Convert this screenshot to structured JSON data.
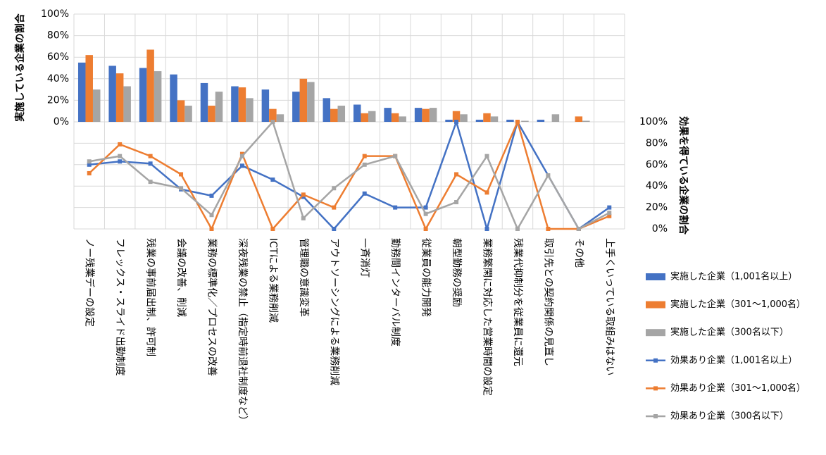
{
  "chart_data": {
    "type": "bar+line",
    "categories": [
      "ノー残業デーの設定",
      "フレックス・スライド出勤制度",
      "残業の事前届出制、許可制",
      "会議の改善、削減",
      "業務の標準化／プロセスの改善",
      "深夜残業の禁止（指定時前退社制度など）",
      "ICTによる業務削減",
      "管理職の意識変革",
      "アウトソーシングによる業務削減",
      "一斉消灯",
      "勤務間インターバル制度",
      "従業員の能力開発",
      "朝型勤務の奨励",
      "業務繁閑に対応した営業時間の設定",
      "残業代抑制分を従業員に還元",
      "取引先との契約関係の見直し",
      "その他",
      "上手くいっている取組みはない"
    ],
    "bar_axis": {
      "title": "実施している企業の割合",
      "ticks": [
        "0%",
        "20%",
        "40%",
        "60%",
        "80%",
        "100%"
      ],
      "ylim": [
        0,
        100
      ]
    },
    "line_axis": {
      "title": "効果を得ている企業の割合",
      "ticks": [
        "0%",
        "20%",
        "40%",
        "60%",
        "80%",
        "100%"
      ],
      "ylim": [
        0,
        100
      ]
    },
    "bar_series": [
      {
        "name": "実施した企業（1,001名以上）",
        "color": "#4472c4",
        "values": [
          55,
          52,
          50,
          44,
          36,
          33,
          30,
          28,
          22,
          16,
          13,
          13,
          2,
          2,
          2,
          2,
          0,
          0
        ]
      },
      {
        "name": "実施した企業（301～1,000名）",
        "color": "#ed7d31",
        "values": [
          62,
          45,
          67,
          20,
          15,
          32,
          12,
          40,
          12,
          8,
          8,
          12,
          10,
          8,
          0,
          0,
          5,
          0
        ]
      },
      {
        "name": "実施した企業（300名以下）",
        "color": "#a5a5a5",
        "values": [
          30,
          33,
          47,
          15,
          28,
          22,
          7,
          37,
          15,
          10,
          5,
          13,
          7,
          5,
          1,
          7,
          1,
          0
        ]
      }
    ],
    "line_series": [
      {
        "name": "効果あり企業（1,001名以上）",
        "color": "#4472c4",
        "values": [
          60,
          63,
          61,
          37,
          31,
          59,
          46,
          30,
          0,
          33,
          20,
          20,
          100,
          0,
          100,
          null,
          0,
          20
        ]
      },
      {
        "name": "効果あり企業（301～1,000名）",
        "color": "#ed7d31",
        "values": [
          52,
          79,
          68,
          51,
          0,
          70,
          0,
          32,
          20,
          68,
          68,
          0,
          51,
          34,
          100,
          0,
          0,
          12
        ]
      },
      {
        "name": "効果あり企業（300名以下）",
        "color": "#a5a5a5",
        "values": [
          63,
          68,
          44,
          38,
          13,
          68,
          100,
          10,
          38,
          60,
          68,
          14,
          25,
          68,
          0,
          50,
          0,
          15
        ]
      }
    ]
  }
}
